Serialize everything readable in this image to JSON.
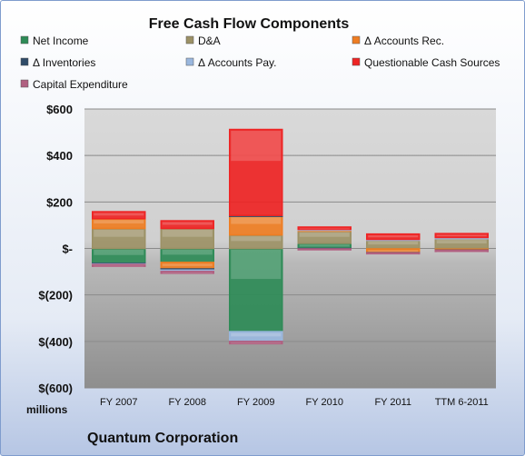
{
  "chart_data": {
    "type": "bar",
    "stacked": true,
    "title": "Free Cash Flow Components",
    "unit_label": "millions",
    "company": "Quantum Corporation",
    "categories": [
      "FY 2007",
      "FY 2008",
      "FY 2009",
      "FY 2010",
      "FY 2011",
      "TTM 6-2011"
    ],
    "ylim": [
      -600,
      600
    ],
    "yticks": [
      600,
      400,
      200,
      0,
      -200,
      -400,
      -600
    ],
    "ytick_labels": [
      "$600",
      "$400",
      "$200",
      "$-",
      "$(200)",
      "$(400)",
      "$(600)"
    ],
    "grid": true,
    "legend_position": "top",
    "series": [
      {
        "name": "Net Income",
        "color": "#2e8b57",
        "values": [
          -64,
          -60,
          -358,
          22,
          -2,
          -3
        ]
      },
      {
        "name": "D&A",
        "color": "#9c9166",
        "values": [
          86,
          86,
          58,
          52,
          35,
          42
        ]
      },
      {
        "name": "Δ Accounts Rec.",
        "color": "#ee7d22",
        "values": [
          42,
          -28,
          82,
          5,
          -16,
          -4
        ]
      },
      {
        "name": "Δ Inventories",
        "color": "#2f4b68",
        "values": [
          -3,
          -5,
          2,
          -2,
          -1,
          -1
        ]
      },
      {
        "name": "Δ Accounts Pay.",
        "color": "#9ab7de",
        "values": [
          -2,
          -6,
          -42,
          3,
          4,
          5
        ]
      },
      {
        "name": "Questionable Cash Sources",
        "color": "#ee2424",
        "values": [
          30,
          33,
          370,
          10,
          23,
          17
        ]
      },
      {
        "name": "Capital Expenditure",
        "color": "#b06080",
        "values": [
          -8,
          -8,
          -10,
          -4,
          -4,
          -5
        ]
      }
    ]
  }
}
